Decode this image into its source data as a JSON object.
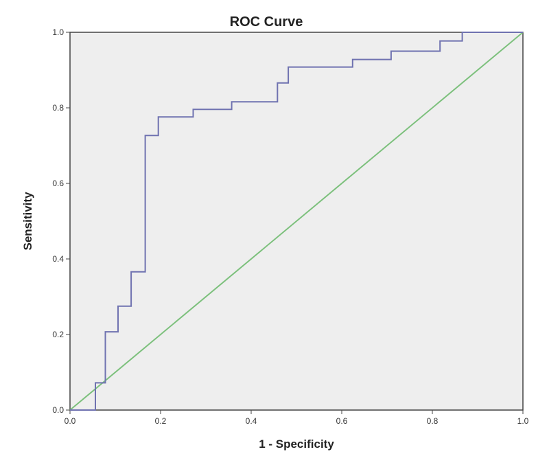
{
  "chart_data": {
    "type": "line",
    "title": "ROC Curve",
    "xlabel": "1 - Specificity",
    "ylabel": "Sensitivity",
    "xlim": [
      0,
      1
    ],
    "ylim": [
      0,
      1
    ],
    "xticks": [
      "0.0",
      "0.2",
      "0.4",
      "0.6",
      "0.8",
      "1.0"
    ],
    "yticks": [
      "0.0",
      "0.2",
      "0.4",
      "0.6",
      "0.8",
      "1.0"
    ],
    "grid": false,
    "legend": "none",
    "plot_background": "#eeeeee",
    "series": [
      {
        "kind": "roc",
        "color": "#6f72b0",
        "x": [
          0,
          0.056,
          0.056,
          0.078,
          0.078,
          0.106,
          0.106,
          0.135,
          0.135,
          0.166,
          0.166,
          0.195,
          0.195,
          0.272,
          0.272,
          0.357,
          0.357,
          0.458,
          0.458,
          0.482,
          0.482,
          0.624,
          0.624,
          0.709,
          0.709,
          0.817,
          0.817,
          0.866,
          0.866,
          1
        ],
        "y": [
          0,
          0,
          0.072,
          0.072,
          0.207,
          0.207,
          0.275,
          0.275,
          0.366,
          0.366,
          0.727,
          0.727,
          0.776,
          0.776,
          0.796,
          0.796,
          0.816,
          0.816,
          0.866,
          0.866,
          0.908,
          0.908,
          0.928,
          0.928,
          0.95,
          0.95,
          0.977,
          0.977,
          1,
          1
        ]
      },
      {
        "kind": "reference",
        "color": "#7cc07c",
        "x": [
          0,
          1
        ],
        "y": [
          0,
          1
        ]
      }
    ]
  }
}
